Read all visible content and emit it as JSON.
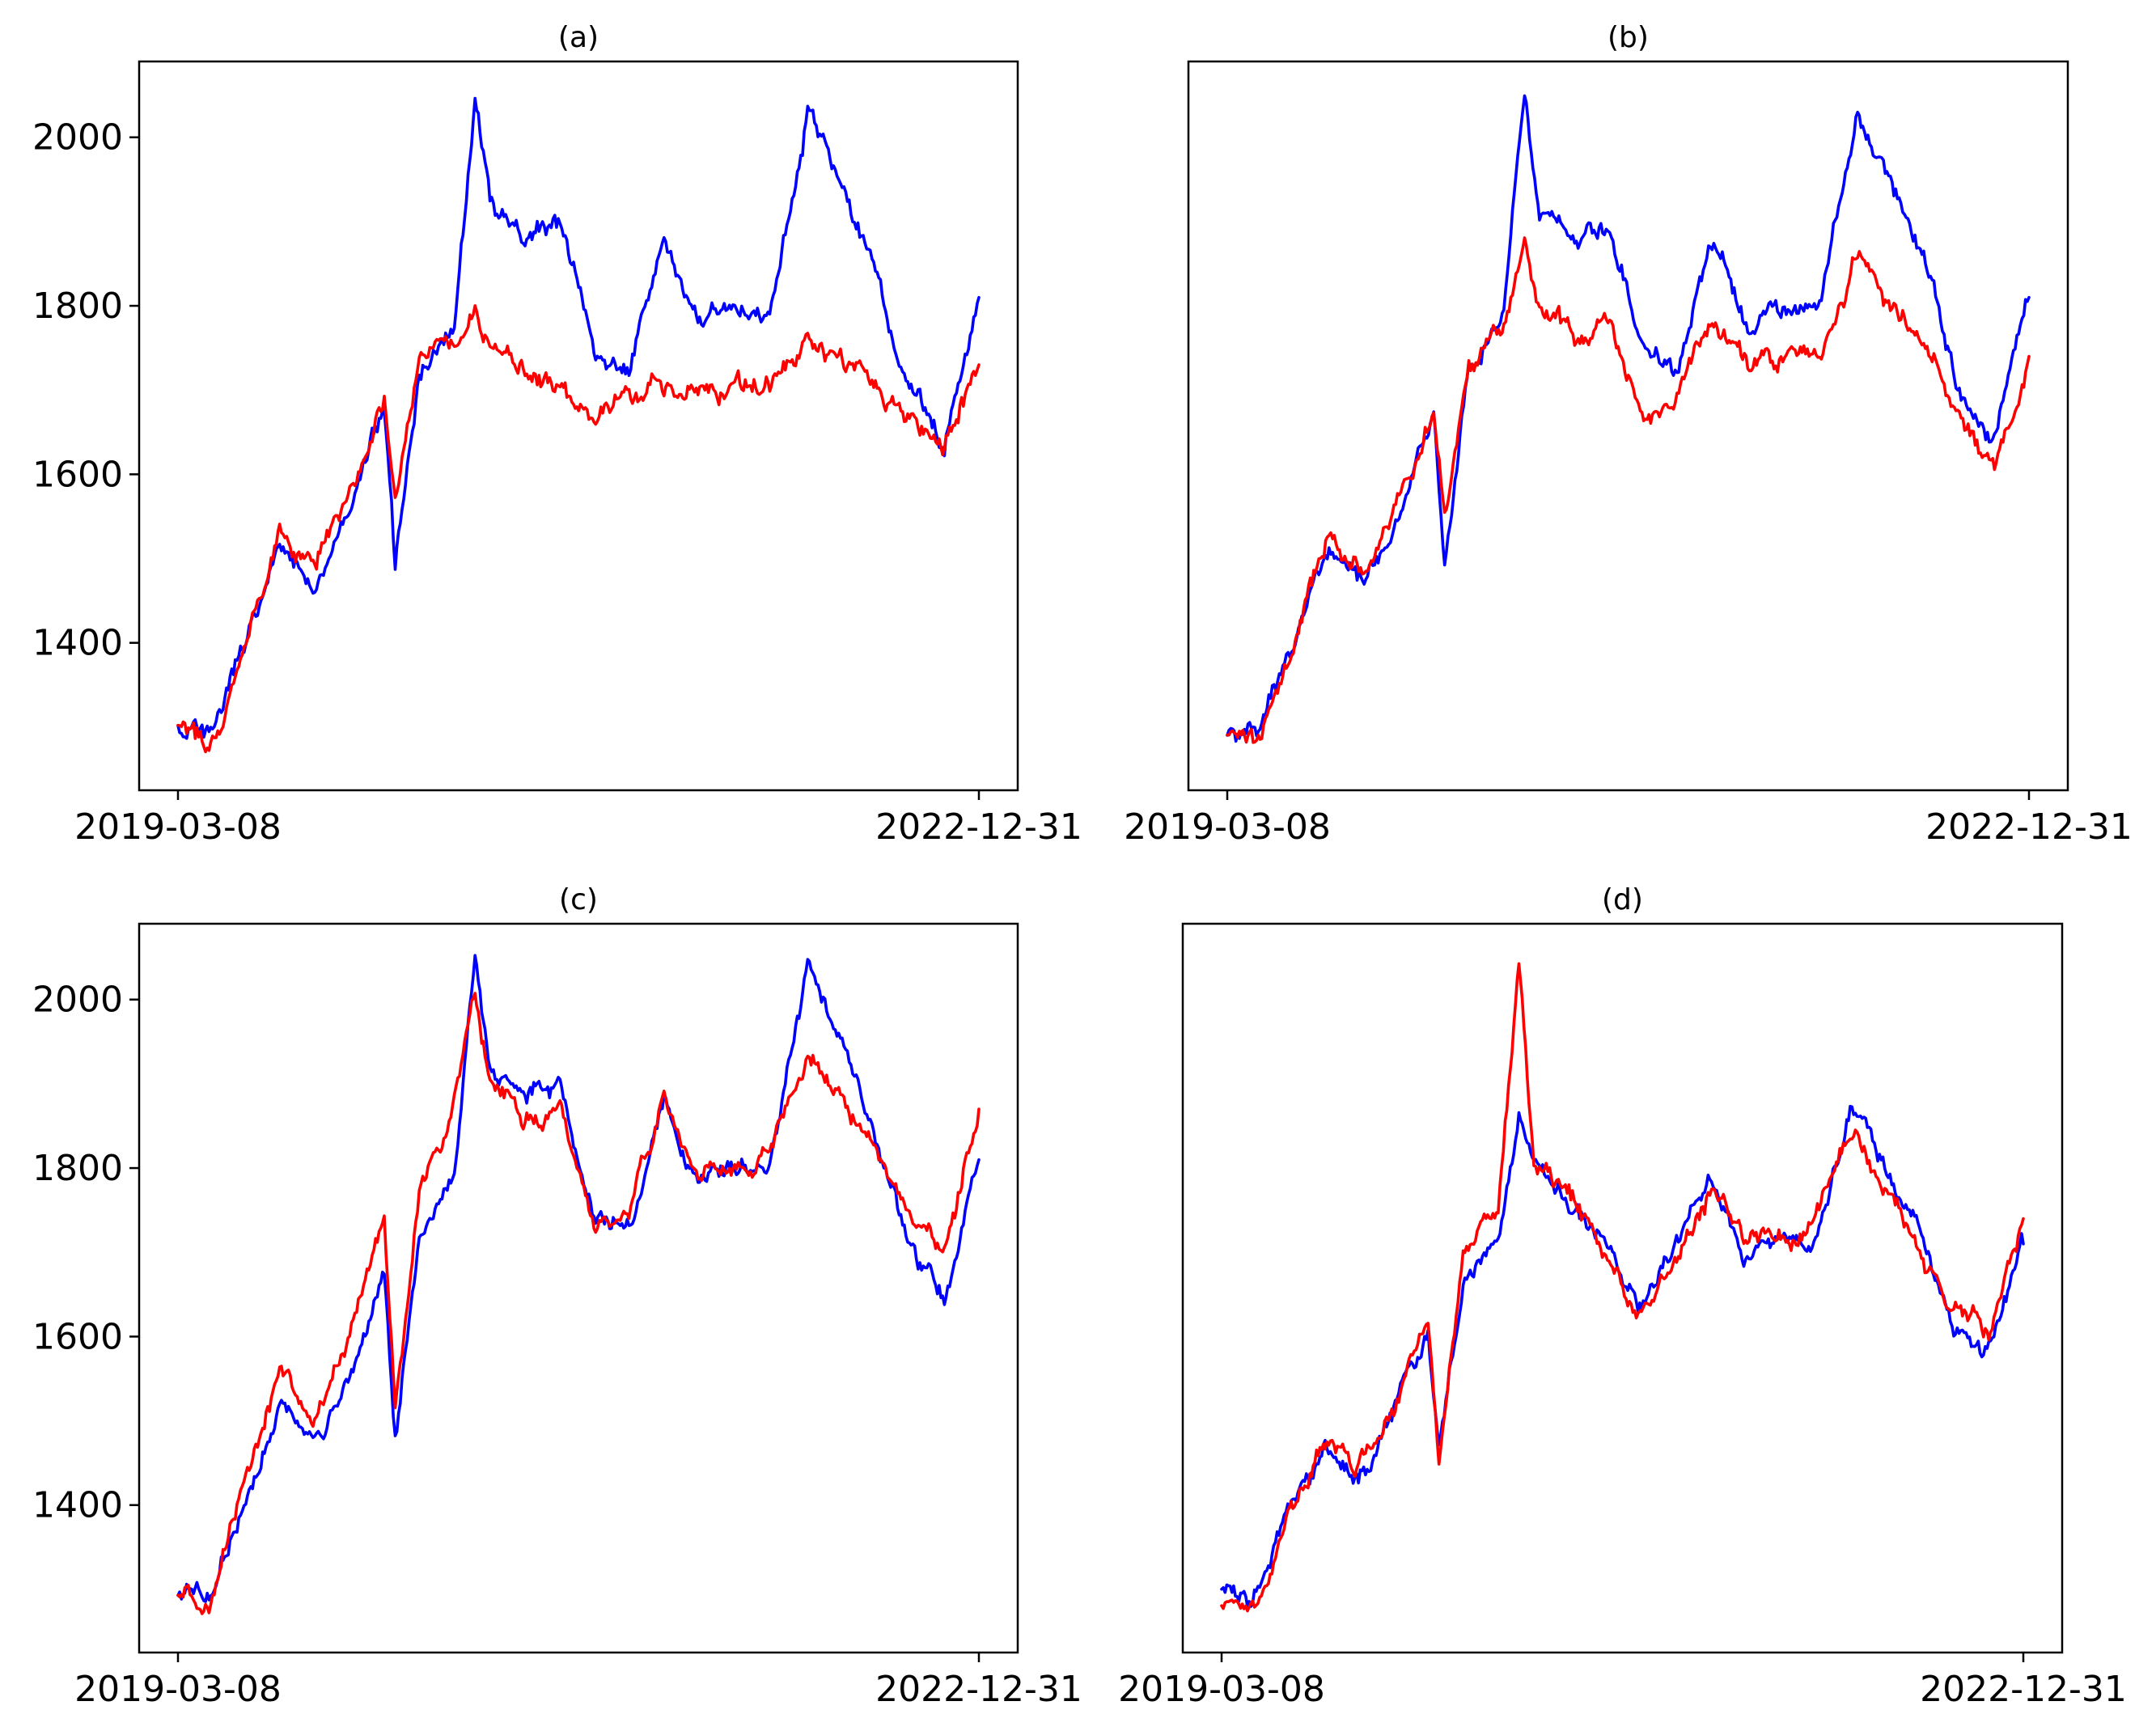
{
  "figure": {
    "colors": {
      "actual": "#0000ff",
      "predicted": "#ff0000",
      "frame": "#000000"
    }
  },
  "chart_data": [
    {
      "type": "line",
      "title": "(a)",
      "x": [
        "2019-03-08",
        "2019-05-01",
        "2019-07-01",
        "2019-09-01",
        "2019-11-01",
        "2020-01-01",
        "2020-03-01",
        "2020-03-20",
        "2020-05-01",
        "2020-07-01",
        "2020-08-06",
        "2020-09-01",
        "2020-11-01",
        "2021-01-01",
        "2021-03-01",
        "2021-05-01",
        "2021-07-01",
        "2021-09-01",
        "2021-11-01",
        "2022-01-01",
        "2022-03-08",
        "2022-05-01",
        "2022-07-01",
        "2022-09-01",
        "2022-11-01",
        "2022-12-31"
      ],
      "xticks": [
        "2019-03-08",
        "2022-12-31"
      ],
      "ylim": [
        1225,
        2090
      ],
      "yticks": [
        1400,
        1600,
        1800,
        2000
      ],
      "series": [
        {
          "values": [
            1295,
            1290,
            1400,
            1515,
            1470,
            1560,
            1680,
            1490,
            1720,
            1790,
            2050,
            1920,
            1880,
            1900,
            1750,
            1720,
            1880,
            1780,
            1800,
            1800,
            2040,
            1950,
            1850,
            1700,
            1640,
            1810
          ]
        },
        {
          "values": [
            1295,
            1280,
            1390,
            1540,
            1500,
            1580,
            1700,
            1580,
            1740,
            1760,
            1800,
            1750,
            1720,
            1700,
            1660,
            1700,
            1710,
            1690,
            1700,
            1700,
            1760,
            1730,
            1700,
            1670,
            1640,
            1730
          ]
        }
      ]
    },
    {
      "type": "line",
      "title": "(b)",
      "x": [
        "2019-03-08",
        "2019-05-01",
        "2019-07-01",
        "2019-09-01",
        "2019-11-01",
        "2020-01-01",
        "2020-03-01",
        "2020-03-20",
        "2020-05-01",
        "2020-07-01",
        "2020-08-06",
        "2020-09-01",
        "2020-11-01",
        "2021-01-01",
        "2021-03-01",
        "2021-05-01",
        "2021-07-01",
        "2021-09-01",
        "2021-11-01",
        "2022-01-01",
        "2022-03-08",
        "2022-05-01",
        "2022-07-01",
        "2022-09-01",
        "2022-11-01",
        "2022-12-31"
      ],
      "xticks": [
        "2019-03-08",
        "2022-12-31"
      ],
      "ylim": [
        1225,
        2090
      ],
      "yticks": [
        1400,
        1600,
        1800,
        2000
      ],
      "series": [
        {
          "values": [
            1295,
            1290,
            1400,
            1515,
            1470,
            1560,
            1680,
            1490,
            1720,
            1790,
            2050,
            1920,
            1880,
            1900,
            1750,
            1720,
            1880,
            1780,
            1800,
            1800,
            2040,
            1950,
            1850,
            1700,
            1640,
            1810
          ]
        },
        {
          "values": [
            1295,
            1280,
            1400,
            1530,
            1480,
            1570,
            1670,
            1560,
            1720,
            1780,
            1880,
            1800,
            1760,
            1780,
            1660,
            1700,
            1780,
            1720,
            1740,
            1740,
            1860,
            1800,
            1760,
            1660,
            1610,
            1740
          ]
        }
      ]
    },
    {
      "type": "line",
      "title": "(c)",
      "x": [
        "2019-03-08",
        "2019-05-01",
        "2019-07-01",
        "2019-09-01",
        "2019-11-01",
        "2020-01-01",
        "2020-03-01",
        "2020-03-20",
        "2020-05-01",
        "2020-07-01",
        "2020-08-06",
        "2020-09-01",
        "2020-11-01",
        "2021-01-01",
        "2021-03-01",
        "2021-05-01",
        "2021-07-01",
        "2021-09-01",
        "2021-11-01",
        "2022-01-01",
        "2022-03-08",
        "2022-05-01",
        "2022-07-01",
        "2022-09-01",
        "2022-11-01",
        "2022-12-31"
      ],
      "xticks": [
        "2019-03-08",
        "2022-12-31"
      ],
      "ylim": [
        1225,
        2090
      ],
      "yticks": [
        1400,
        1600,
        1800,
        2000
      ],
      "series": [
        {
          "values": [
            1295,
            1290,
            1400,
            1515,
            1470,
            1560,
            1680,
            1490,
            1720,
            1790,
            2050,
            1920,
            1880,
            1900,
            1750,
            1720,
            1880,
            1780,
            1800,
            1800,
            2040,
            1950,
            1850,
            1700,
            1640,
            1810
          ]
        },
        {
          "values": [
            1295,
            1275,
            1420,
            1560,
            1500,
            1600,
            1720,
            1500,
            1770,
            1880,
            2010,
            1900,
            1860,
            1870,
            1720,
            1750,
            1880,
            1790,
            1800,
            1820,
            1940,
            1890,
            1820,
            1740,
            1700,
            1870
          ]
        }
      ]
    },
    {
      "type": "line",
      "title": "(d)",
      "x": [
        "2019-03-08",
        "2019-05-01",
        "2019-07-01",
        "2019-09-01",
        "2019-11-01",
        "2020-01-01",
        "2020-03-01",
        "2020-03-20",
        "2020-05-01",
        "2020-07-01",
        "2020-08-06",
        "2020-09-01",
        "2020-11-01",
        "2021-01-01",
        "2021-03-01",
        "2021-05-01",
        "2021-07-01",
        "2021-09-01",
        "2021-11-01",
        "2022-01-01",
        "2022-03-08",
        "2022-05-01",
        "2022-07-01",
        "2022-09-01",
        "2022-11-01",
        "2022-12-31"
      ],
      "xticks": [
        "2019-03-08",
        "2022-12-31"
      ],
      "ylim": [
        1225,
        2090
      ],
      "yticks": [
        1400,
        1600,
        1800,
        2000
      ],
      "series": [
        {
          "values": [
            1300,
            1285,
            1390,
            1470,
            1440,
            1510,
            1600,
            1460,
            1660,
            1720,
            1860,
            1790,
            1750,
            1720,
            1640,
            1700,
            1780,
            1700,
            1720,
            1710,
            1880,
            1800,
            1740,
            1620,
            1580,
            1710
          ]
        },
        {
          "values": [
            1280,
            1270,
            1380,
            1490,
            1440,
            1520,
            1620,
            1450,
            1700,
            1760,
            2050,
            1820,
            1770,
            1700,
            1620,
            1700,
            1770,
            1720,
            1710,
            1750,
            1850,
            1780,
            1700,
            1640,
            1600,
            1740
          ]
        }
      ]
    }
  ]
}
